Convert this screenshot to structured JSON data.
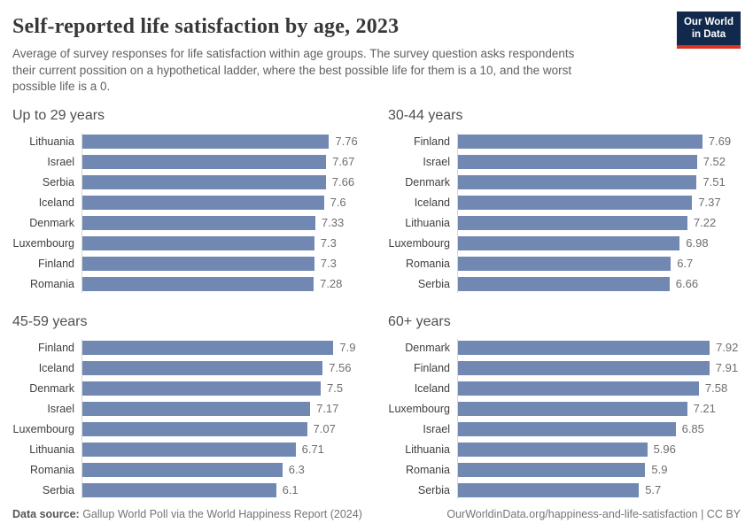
{
  "header": {
    "title": "Self-reported life satisfaction by age, 2023",
    "subtitle": "Average of survey responses for life satisfaction within age groups. The survey question asks respondents\ntheir current possition on a hypothetical ladder, where the best possible life for them is a 10, and the worst\npossible life is a 0.",
    "logo": {
      "line1": "Our World",
      "line2": "in Data"
    }
  },
  "chart_data": [
    {
      "type": "bar",
      "orientation": "horizontal",
      "title": "Up to 29 years",
      "categories": [
        "Lithuania",
        "Israel",
        "Serbia",
        "Iceland",
        "Denmark",
        "Luxembourg",
        "Finland",
        "Romania"
      ],
      "values": [
        7.76,
        7.67,
        7.66,
        7.6,
        7.33,
        7.3,
        7.3,
        7.28
      ],
      "xlim": [
        0,
        8
      ],
      "grid": false,
      "value_labels": true
    },
    {
      "type": "bar",
      "orientation": "horizontal",
      "title": "30-44 years",
      "categories": [
        "Finland",
        "Israel",
        "Denmark",
        "Iceland",
        "Lithuania",
        "Luxembourg",
        "Romania",
        "Serbia"
      ],
      "values": [
        7.69,
        7.52,
        7.51,
        7.37,
        7.22,
        6.98,
        6.7,
        6.66
      ],
      "xlim": [
        0,
        8
      ],
      "grid": false,
      "value_labels": true
    },
    {
      "type": "bar",
      "orientation": "horizontal",
      "title": "45-59 years",
      "categories": [
        "Finland",
        "Iceland",
        "Denmark",
        "Israel",
        "Luxembourg",
        "Lithuania",
        "Romania",
        "Serbia"
      ],
      "values": [
        7.9,
        7.56,
        7.5,
        7.17,
        7.07,
        6.71,
        6.3,
        6.1
      ],
      "xlim": [
        0,
        8
      ],
      "grid": false,
      "value_labels": true
    },
    {
      "type": "bar",
      "orientation": "horizontal",
      "title": "60+ years",
      "categories": [
        "Denmark",
        "Finland",
        "Iceland",
        "Luxembourg",
        "Israel",
        "Lithuania",
        "Romania",
        "Serbia"
      ],
      "values": [
        7.92,
        7.91,
        7.58,
        7.21,
        6.85,
        5.96,
        5.9,
        5.7
      ],
      "xlim": [
        0,
        8
      ],
      "grid": false,
      "value_labels": true
    }
  ],
  "style": {
    "bar_color": "#7189b2",
    "logo_bg": "#10294c",
    "logo_accent": "#dd3222",
    "axis_line_color": "#d6d6d6"
  },
  "footer": {
    "source_label": "Data source:",
    "source_text": " Gallup World Poll via the World Happiness Report (2024)",
    "citation": "OurWorldinData.org/happiness-and-life-satisfaction | CC BY"
  }
}
